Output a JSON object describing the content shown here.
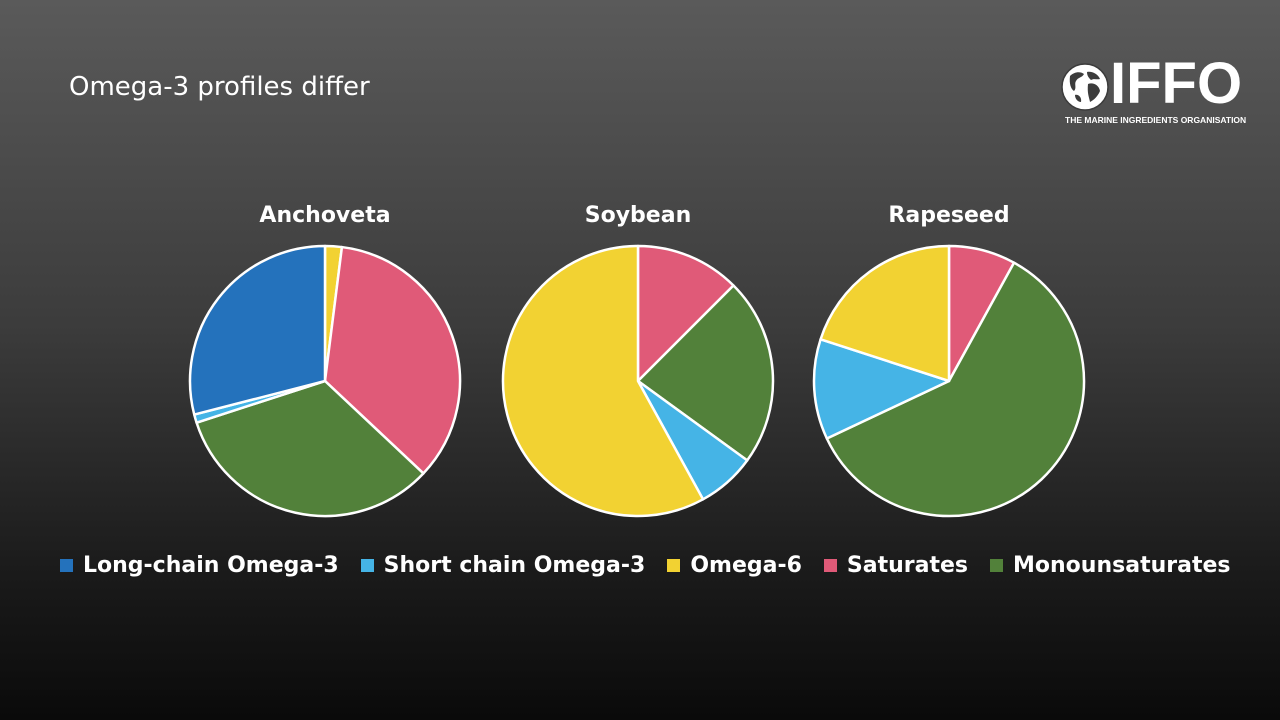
{
  "slide": {
    "title": "Omega-3 profiles differ"
  },
  "logo": {
    "text": "IFFO",
    "tagline": "THE MARINE INGREDIENTS ORGANISATION"
  },
  "colors": {
    "long_chain_omega3": "#2472bc",
    "short_chain_omega3": "#45b4e6",
    "omega6": "#f2d232",
    "saturates": "#e05a78",
    "monounsaturates": "#52813a"
  },
  "chart_data": [
    {
      "type": "pie",
      "title": "Anchoveta",
      "labels": [
        "Omega-6",
        "Saturates",
        "Monounsaturates",
        "Short chain Omega-3",
        "Long-chain Omega-3"
      ],
      "values": [
        2,
        35,
        33,
        1,
        29
      ]
    },
    {
      "type": "pie",
      "title": "Soybean",
      "labels": [
        "Saturates",
        "Monounsaturates",
        "Short chain Omega-3",
        "Omega-6"
      ],
      "values": [
        12.5,
        22.5,
        7,
        58
      ]
    },
    {
      "type": "pie",
      "title": "Rapeseed",
      "labels": [
        "Saturates",
        "Monounsaturates",
        "Short chain Omega-3",
        "Omega-6"
      ],
      "values": [
        8,
        60,
        12,
        20
      ]
    }
  ],
  "legend": [
    {
      "label": "Long-chain Omega-3",
      "color": "#2472bc"
    },
    {
      "label": "Short chain Omega-3",
      "color": "#45b4e6"
    },
    {
      "label": "Omega-6",
      "color": "#f2d232"
    },
    {
      "label": "Saturates",
      "color": "#e05a78"
    },
    {
      "label": "Monounsaturates",
      "color": "#52813a"
    }
  ]
}
